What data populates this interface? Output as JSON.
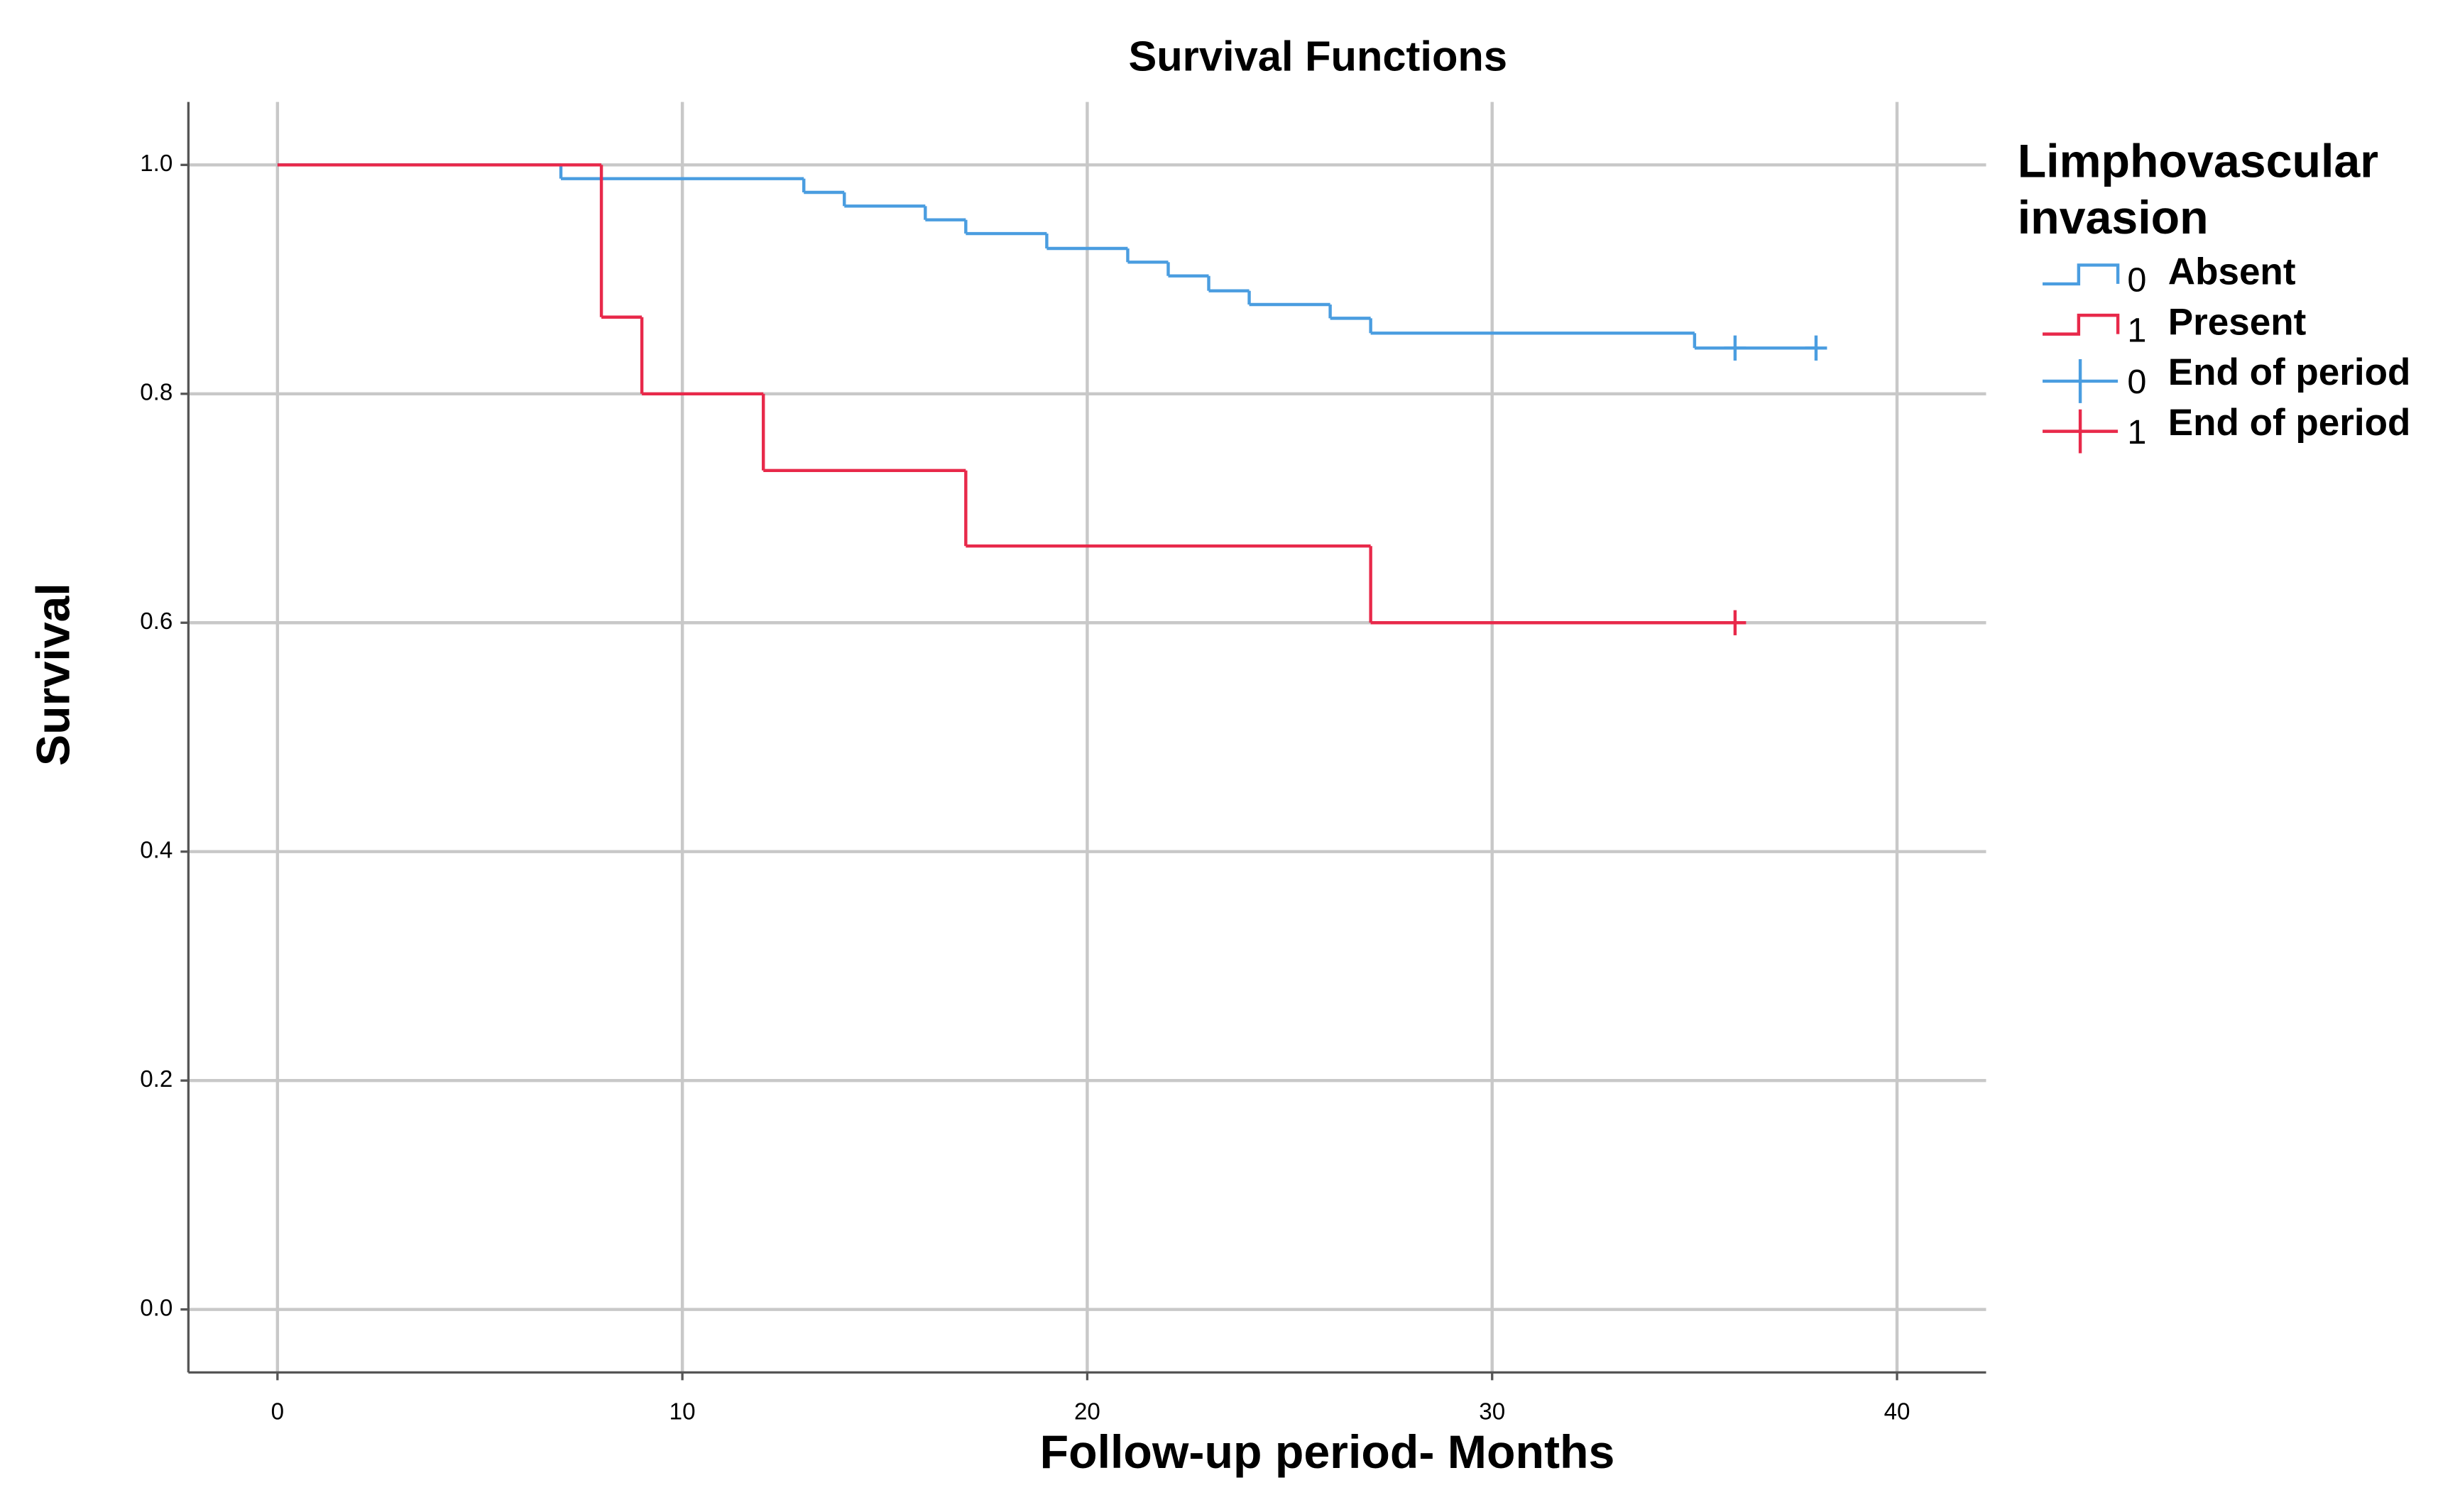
{
  "chart_data": {
    "type": "survival",
    "title": "Survival Functions",
    "x_label": "Follow-up period- Months",
    "y_label": "Survival",
    "legend_title": "Limphovascular invasion",
    "legend_position": "right",
    "grid": true,
    "xlim": [
      -2.2,
      42.2
    ],
    "ylim": [
      -0.055,
      1.055
    ],
    "xticks": [
      0,
      10,
      20,
      30,
      40
    ],
    "yticks": [
      {
        "value": 0,
        "label": "0.0"
      },
      0.2,
      0.4,
      0.6,
      0.8,
      {
        "value": 1,
        "label": "1.0"
      }
    ],
    "series": [
      {
        "name": "Absent",
        "code": "0",
        "color": "#4a9de0",
        "censor_name": "End of period",
        "x": [
          0,
          7,
          13,
          14,
          16,
          17,
          19,
          21,
          22,
          23,
          24,
          26,
          27,
          35,
          38
        ],
        "values": [
          1,
          0.988,
          0.976,
          0.964,
          0.952,
          0.94,
          0.927,
          0.915,
          0.903,
          0.89,
          0.878,
          0.866,
          0.853,
          0.84,
          0.84
        ],
        "censored_x": [
          36,
          38
        ],
        "censored_values": [
          0.84,
          0.84
        ]
      },
      {
        "name": "Present",
        "code": "1",
        "color": "#e8294a",
        "censor_name": "End of period",
        "x": [
          0,
          8,
          9,
          12,
          17,
          27,
          36
        ],
        "values": [
          1,
          0.867,
          0.8,
          0.733,
          0.667,
          0.6,
          0.6
        ],
        "censored_x": [
          36
        ],
        "censored_values": [
          0.6
        ]
      }
    ]
  }
}
